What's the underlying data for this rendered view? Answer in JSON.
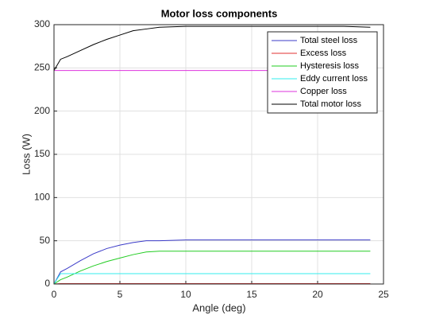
{
  "chart_data": {
    "type": "line",
    "title": "Motor loss components",
    "xlabel": "Angle (deg)",
    "ylabel": "Loss (W)",
    "x": [
      0,
      0.5,
      1,
      2,
      3,
      4,
      5,
      6,
      7,
      8,
      10,
      12,
      14,
      16,
      18,
      20,
      22,
      24
    ],
    "series": [
      {
        "name": "Total steel loss",
        "color": "#3b3bc8",
        "values": [
          0,
          14,
          18,
          27,
          35,
          41,
          45,
          48,
          50,
          50,
          51,
          51,
          51,
          51,
          51,
          51,
          51,
          51
        ]
      },
      {
        "name": "Excess loss",
        "color": "#e03030",
        "values": [
          0,
          0.5,
          0.5,
          0.5,
          0.5,
          0.5,
          0.5,
          0.5,
          0.5,
          0.5,
          0.5,
          0.5,
          0.5,
          0.5,
          0.5,
          0.5,
          0.5,
          0.5
        ]
      },
      {
        "name": "Hysteresis loss",
        "color": "#22cc22",
        "values": [
          0,
          5,
          8,
          15,
          21,
          26,
          30,
          34,
          37,
          38,
          38,
          38,
          38,
          38,
          38,
          38,
          38,
          38
        ]
      },
      {
        "name": "Eddy current loss",
        "color": "#33eeee",
        "values": [
          0,
          12,
          12,
          12,
          12,
          12,
          12,
          12,
          12,
          12,
          12,
          12,
          12,
          12,
          12,
          12,
          12,
          12
        ]
      },
      {
        "name": "Copper loss",
        "color": "#dd33dd",
        "values": [
          247,
          247,
          247,
          247,
          247,
          247,
          247,
          247,
          247,
          247,
          247,
          247,
          247,
          247,
          247,
          247,
          247,
          247
        ]
      },
      {
        "name": "Total motor loss",
        "color": "#000000",
        "values": [
          247,
          260,
          263,
          270,
          277,
          283,
          288,
          293,
          295,
          297,
          298,
          298,
          298,
          298,
          298,
          298,
          298,
          297
        ]
      }
    ],
    "xlim": [
      0,
      25
    ],
    "xticks": [
      0,
      5,
      10,
      15,
      20,
      25
    ],
    "ylim": [
      0,
      300
    ],
    "yticks": [
      0,
      50,
      100,
      150,
      200,
      250,
      300
    ],
    "grid": true,
    "legend": "top-right"
  }
}
